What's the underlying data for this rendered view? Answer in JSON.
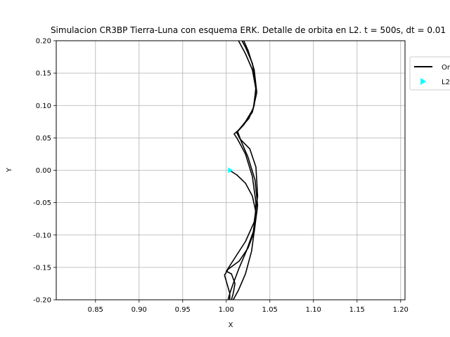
{
  "chart_data": {
    "type": "line",
    "title": "Simulacion CR3BP Tierra-Luna con esquema ERK. Detalle de orbita en L2. t = 500s, dt = 0.01",
    "xlabel": "X",
    "ylabel": "Y",
    "xlim": [
      0.805,
      1.205
    ],
    "ylim": [
      -0.2,
      0.2
    ],
    "xticks": [
      "0.85",
      "0.90",
      "0.95",
      "1.00",
      "1.05",
      "1.10",
      "1.15",
      "1.20"
    ],
    "xtick_values": [
      0.85,
      0.9,
      0.95,
      1.0,
      1.05,
      1.1,
      1.15,
      1.2
    ],
    "yticks": [
      "-0.20",
      "-0.15",
      "-0.10",
      "-0.05",
      "0.00",
      "0.05",
      "0.10",
      "0.15",
      "0.20"
    ],
    "ytick_values": [
      -0.2,
      -0.15,
      -0.1,
      -0.05,
      0.0,
      0.05,
      0.1,
      0.15,
      0.2
    ],
    "grid": true,
    "legend_position": "upper-right, outside",
    "series": [
      {
        "name": "Orbita",
        "color": "#000000",
        "segments": [
          [
            [
              1.0037,
              0.0
            ],
            [
              1.012,
              -0.007
            ],
            [
              1.022,
              -0.02
            ],
            [
              1.03,
              -0.04
            ],
            [
              1.034,
              -0.065
            ],
            [
              1.031,
              -0.095
            ],
            [
              1.023,
              -0.125
            ],
            [
              1.015,
              -0.15
            ],
            [
              1.008,
              -0.175
            ],
            [
              1.004,
              -0.19
            ],
            [
              1.002,
              -0.2
            ]
          ],
          [
            [
              1.008,
              -0.2
            ],
            [
              1.014,
              -0.185
            ],
            [
              1.022,
              -0.16
            ],
            [
              1.029,
              -0.125
            ],
            [
              1.033,
              -0.085
            ],
            [
              1.034,
              -0.05
            ],
            [
              1.03,
              -0.01
            ],
            [
              1.022,
              0.025
            ],
            [
              1.013,
              0.048
            ],
            [
              1.009,
              0.056
            ],
            [
              1.014,
              0.062
            ],
            [
              1.026,
              0.08
            ],
            [
              1.032,
              0.1
            ],
            [
              1.034,
              0.13
            ],
            [
              1.03,
              0.165
            ],
            [
              1.022,
              0.19
            ],
            [
              1.018,
              0.2
            ]
          ],
          [
            [
              1.014,
              0.2
            ],
            [
              1.022,
              0.18
            ],
            [
              1.03,
              0.155
            ],
            [
              1.034,
              0.125
            ],
            [
              1.031,
              0.095
            ],
            [
              1.022,
              0.075
            ],
            [
              1.012,
              0.058
            ],
            [
              1.016,
              0.048
            ],
            [
              1.027,
              0.033
            ],
            [
              1.034,
              0.005
            ],
            [
              1.036,
              -0.04
            ],
            [
              1.032,
              -0.08
            ],
            [
              1.022,
              -0.11
            ],
            [
              1.01,
              -0.135
            ],
            [
              1.0,
              -0.156
            ],
            [
              1.006,
              -0.16
            ],
            [
              1.01,
              -0.175
            ],
            [
              1.008,
              -0.19
            ],
            [
              1.006,
              -0.2
            ]
          ],
          [
            [
              1.004,
              -0.2
            ],
            [
              1.004,
              -0.19
            ],
            [
              0.998,
              -0.162
            ],
            [
              1.002,
              -0.153
            ],
            [
              1.015,
              -0.14
            ],
            [
              1.025,
              -0.12
            ],
            [
              1.032,
              -0.095
            ],
            [
              1.036,
              -0.055
            ],
            [
              1.033,
              -0.015
            ],
            [
              1.025,
              0.02
            ],
            [
              1.017,
              0.045
            ],
            [
              1.013,
              0.06
            ],
            [
              1.02,
              0.07
            ],
            [
              1.03,
              0.09
            ],
            [
              1.035,
              0.12
            ],
            [
              1.032,
              0.155
            ],
            [
              1.025,
              0.185
            ],
            [
              1.02,
              0.2
            ]
          ]
        ]
      },
      {
        "name": "L2",
        "color": "#00ffff",
        "marker": "triangle-right",
        "points": [
          [
            1.0044,
            0.0
          ]
        ]
      }
    ]
  }
}
